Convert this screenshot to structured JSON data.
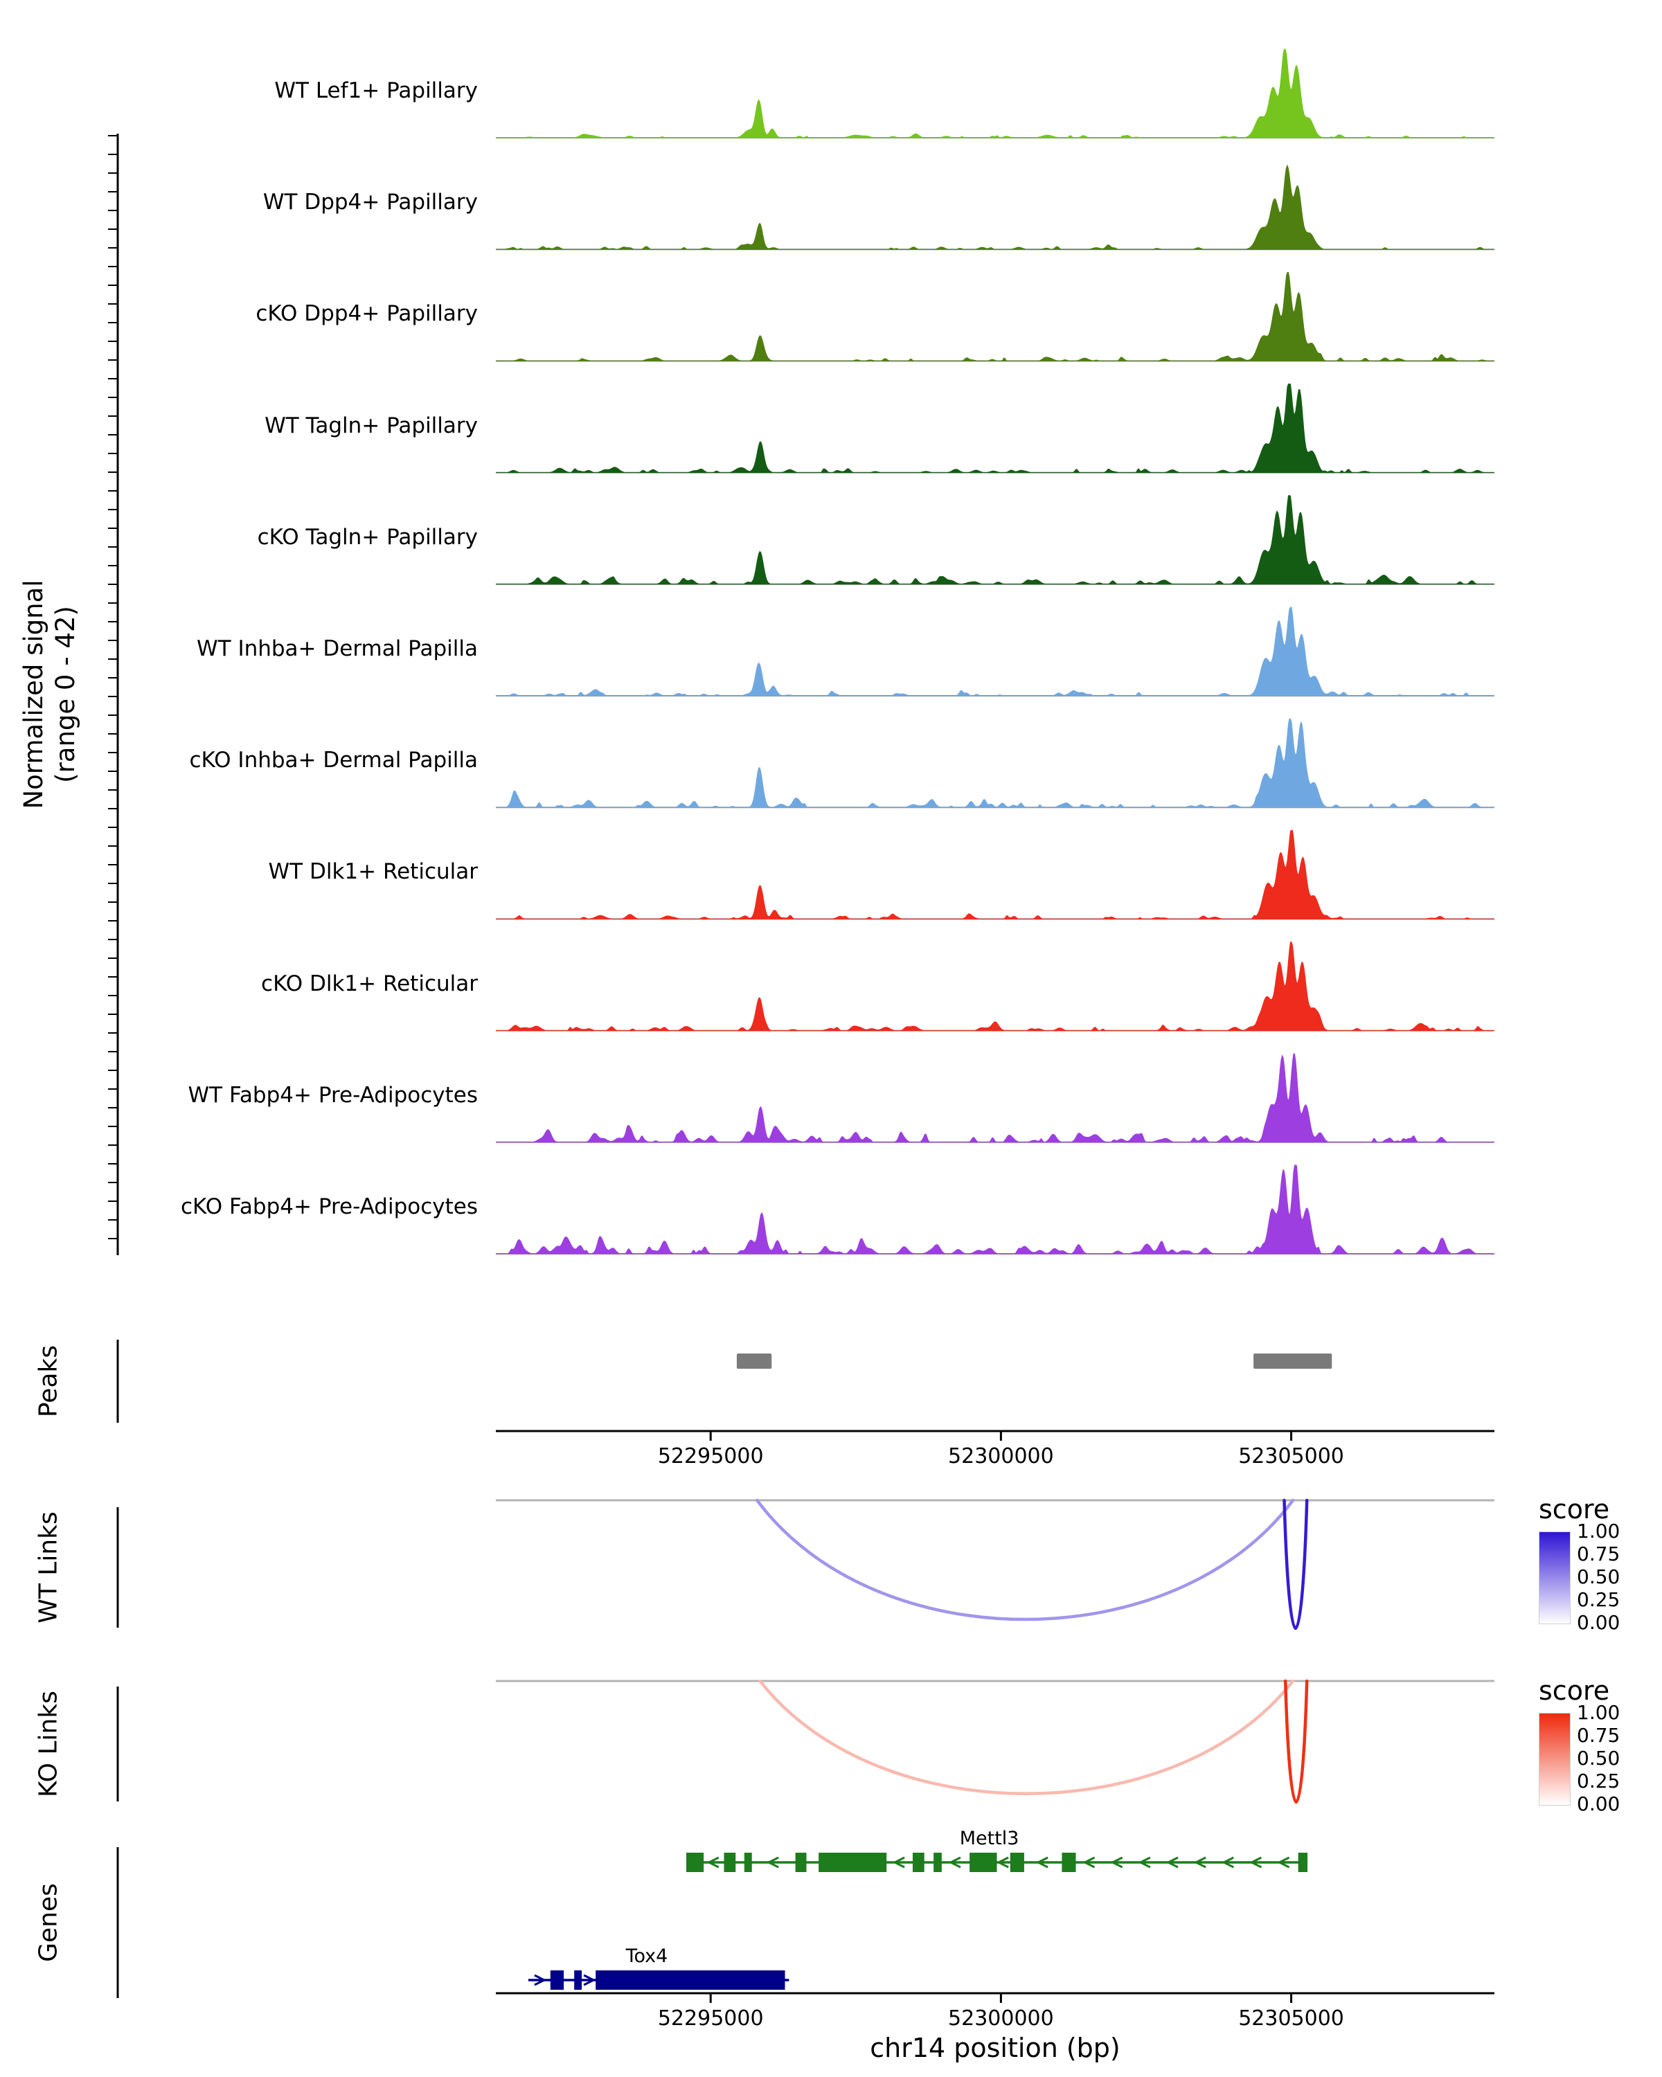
{
  "left_labels": {
    "signal_axis_line1": "Normalized signal",
    "signal_axis_line2": "(range 0 - 42)",
    "peaks": "Peaks",
    "wt_links": "WT Links",
    "ko_links": "KO Links",
    "genes": "Genes"
  },
  "x_axis": {
    "title": "chr14 position (bp)",
    "ticks": [
      52295000,
      52300000,
      52305000
    ],
    "tick_labels": [
      "52295000",
      "52300000",
      "52305000"
    ],
    "range_start": 52291300,
    "range_end": 52308500
  },
  "legend": {
    "title": "score",
    "ticks": [
      "1.00",
      "0.75",
      "0.50",
      "0.25",
      "0.00"
    ]
  },
  "chart_data": {
    "type": "area",
    "description": "Genome browser coverage tracks with peaks, co-accessibility links and gene models",
    "signal_range": [
      0,
      42
    ],
    "tracks": [
      {
        "label": "WT Lef1+ Papillary",
        "color": "#76c51e",
        "peaks": [
          [
            52292900,
            0.03,
            120
          ],
          [
            52295650,
            0.08,
            80
          ],
          [
            52295830,
            0.42,
            55
          ],
          [
            52296060,
            0.1,
            50
          ],
          [
            52297500,
            0.03,
            100
          ],
          [
            52300800,
            0.03,
            90
          ],
          [
            52304470,
            0.22,
            95
          ],
          [
            52304690,
            0.55,
            75
          ],
          [
            52304890,
            1.0,
            62
          ],
          [
            52305090,
            0.8,
            68
          ],
          [
            52305300,
            0.22,
            85
          ]
        ],
        "noise": {
          "seed": 11,
          "bumps": 30,
          "amp": 0.028
        }
      },
      {
        "label": "WT Dpp4+ Papillary",
        "color": "#4f7f10",
        "peaks": [
          [
            52295640,
            0.06,
            70
          ],
          [
            52295840,
            0.27,
            55
          ],
          [
            52304500,
            0.24,
            95
          ],
          [
            52304720,
            0.52,
            75
          ],
          [
            52304930,
            0.92,
            62
          ],
          [
            52305110,
            0.7,
            66
          ],
          [
            52305320,
            0.18,
            80
          ]
        ],
        "noise": {
          "seed": 22,
          "bumps": 40,
          "amp": 0.035
        }
      },
      {
        "label": "cKO Dpp4+ Papillary",
        "color": "#4f7f10",
        "peaks": [
          [
            52295850,
            0.28,
            58
          ],
          [
            52304520,
            0.28,
            95
          ],
          [
            52304740,
            0.58,
            72
          ],
          [
            52304940,
            1.0,
            60
          ],
          [
            52305130,
            0.76,
            66
          ],
          [
            52305350,
            0.2,
            82
          ]
        ],
        "noise": {
          "seed": 33,
          "bumps": 45,
          "amp": 0.04
        }
      },
      {
        "label": "WT Tagln+ Papillary",
        "color": "#145c14",
        "peaks": [
          [
            52292400,
            0.05,
            70
          ],
          [
            52293350,
            0.06,
            70
          ],
          [
            52295860,
            0.34,
            55
          ],
          [
            52304560,
            0.32,
            90
          ],
          [
            52304770,
            0.72,
            68
          ],
          [
            52304960,
            1.0,
            58
          ],
          [
            52305140,
            0.93,
            62
          ],
          [
            52305350,
            0.24,
            78
          ]
        ],
        "noise": {
          "seed": 44,
          "bumps": 50,
          "amp": 0.045
        }
      },
      {
        "label": "cKO Tagln+ Papillary",
        "color": "#145c14",
        "peaks": [
          [
            52292300,
            0.08,
            70
          ],
          [
            52293300,
            0.06,
            65
          ],
          [
            52295850,
            0.37,
            58
          ],
          [
            52299000,
            0.04,
            80
          ],
          [
            52304540,
            0.38,
            92
          ],
          [
            52304760,
            0.8,
            68
          ],
          [
            52304970,
            1.0,
            60
          ],
          [
            52305160,
            0.8,
            64
          ],
          [
            52305390,
            0.26,
            85
          ],
          [
            52306600,
            0.1,
            75
          ],
          [
            52307050,
            0.07,
            70
          ]
        ],
        "noise": {
          "seed": 55,
          "bumps": 60,
          "amp": 0.05
        }
      },
      {
        "label": "WT Inhba+ Dermal Papilla",
        "color": "#6fa8e0",
        "peaks": [
          [
            52293000,
            0.05,
            80
          ],
          [
            52295830,
            0.37,
            60
          ],
          [
            52296080,
            0.1,
            55
          ],
          [
            52304560,
            0.42,
            95
          ],
          [
            52304790,
            0.82,
            70
          ],
          [
            52304990,
            1.0,
            62
          ],
          [
            52305180,
            0.68,
            66
          ],
          [
            52305400,
            0.22,
            82
          ]
        ],
        "noise": {
          "seed": 66,
          "bumps": 45,
          "amp": 0.04
        }
      },
      {
        "label": "cKO Inhba+ Dermal Papilla",
        "color": "#6fa8e0",
        "peaks": [
          [
            52291650,
            0.13,
            60
          ],
          [
            52292900,
            0.08,
            60
          ],
          [
            52293900,
            0.07,
            60
          ],
          [
            52295840,
            0.42,
            58
          ],
          [
            52296500,
            0.08,
            60
          ],
          [
            52298800,
            0.07,
            65
          ],
          [
            52304560,
            0.38,
            92
          ],
          [
            52304790,
            0.68,
            68
          ],
          [
            52304980,
            1.0,
            58
          ],
          [
            52305170,
            0.88,
            62
          ],
          [
            52305390,
            0.28,
            80
          ],
          [
            52307300,
            0.09,
            70
          ]
        ],
        "noise": {
          "seed": 77,
          "bumps": 60,
          "amp": 0.05
        }
      },
      {
        "label": "WT Dlk1+ Reticular",
        "color": "#ee2b1c",
        "peaks": [
          [
            52293100,
            0.04,
            80
          ],
          [
            52295850,
            0.38,
            58
          ],
          [
            52296100,
            0.1,
            50
          ],
          [
            52304600,
            0.38,
            90
          ],
          [
            52304820,
            0.72,
            68
          ],
          [
            52305010,
            1.0,
            60
          ],
          [
            52305200,
            0.68,
            64
          ],
          [
            52305410,
            0.2,
            80
          ]
        ],
        "noise": {
          "seed": 88,
          "bumps": 45,
          "amp": 0.04
        }
      },
      {
        "label": "cKO Dlk1+ Reticular",
        "color": "#ee2b1c",
        "peaks": [
          [
            52292000,
            0.05,
            70
          ],
          [
            52295840,
            0.33,
            58
          ],
          [
            52298500,
            0.05,
            70
          ],
          [
            52299900,
            0.06,
            65
          ],
          [
            52304580,
            0.38,
            92
          ],
          [
            52304800,
            0.75,
            68
          ],
          [
            52305000,
            1.0,
            60
          ],
          [
            52305190,
            0.76,
            64
          ],
          [
            52305400,
            0.24,
            80
          ],
          [
            52307200,
            0.06,
            70
          ]
        ],
        "noise": {
          "seed": 99,
          "bumps": 55,
          "amp": 0.045
        }
      },
      {
        "label": "WT Fabp4+ Pre-Adipocytes",
        "color": "#9d3fe0",
        "peaks": [
          [
            52292200,
            0.14,
            55
          ],
          [
            52293000,
            0.1,
            55
          ],
          [
            52293600,
            0.12,
            55
          ],
          [
            52294500,
            0.1,
            55
          ],
          [
            52295650,
            0.12,
            60
          ],
          [
            52295860,
            0.4,
            55
          ],
          [
            52296100,
            0.12,
            50
          ],
          [
            52297500,
            0.11,
            55
          ],
          [
            52298300,
            0.07,
            55
          ],
          [
            52300900,
            0.09,
            55
          ],
          [
            52302300,
            0.07,
            55
          ],
          [
            52304660,
            0.42,
            80
          ],
          [
            52304850,
            0.95,
            60
          ],
          [
            52305050,
            1.0,
            58
          ],
          [
            52305250,
            0.42,
            66
          ]
        ],
        "noise": {
          "seed": 110,
          "bumps": 70,
          "amp": 0.06
        }
      },
      {
        "label": "cKO Fabp4+ Pre-Adipocytes",
        "color": "#9d3fe0",
        "peaks": [
          [
            52291700,
            0.16,
            55
          ],
          [
            52292500,
            0.18,
            60
          ],
          [
            52293100,
            0.13,
            55
          ],
          [
            52294200,
            0.1,
            55
          ],
          [
            52295700,
            0.14,
            60
          ],
          [
            52295880,
            0.46,
            55
          ],
          [
            52296150,
            0.15,
            50
          ],
          [
            52297600,
            0.13,
            55
          ],
          [
            52298900,
            0.1,
            55
          ],
          [
            52300400,
            0.08,
            55
          ],
          [
            52302500,
            0.1,
            55
          ],
          [
            52304680,
            0.48,
            80
          ],
          [
            52304870,
            0.92,
            60
          ],
          [
            52305070,
            1.0,
            56
          ],
          [
            52305270,
            0.5,
            66
          ],
          [
            52307600,
            0.14,
            58
          ]
        ],
        "noise": {
          "seed": 121,
          "bumps": 80,
          "amp": 0.065
        }
      }
    ],
    "peaks_color": "#7a7a7a",
    "peak_regions": [
      {
        "start": 52295450,
        "end": 52296050
      },
      {
        "start": 52304350,
        "end": 52305700
      }
    ],
    "wt_links": {
      "max_color": "#2f14d4",
      "links": [
        {
          "start": 52295800,
          "end": 52305030,
          "score": 0.45,
          "depth": 0.93
        },
        {
          "start": 52304880,
          "end": 52305270,
          "score": 0.97,
          "depth": 1.0
        }
      ]
    },
    "ko_links": {
      "max_color": "#ee2a0d",
      "links": [
        {
          "start": 52295850,
          "end": 52305030,
          "score": 0.33,
          "depth": 0.93
        },
        {
          "start": 52304900,
          "end": 52305270,
          "score": 0.97,
          "depth": 1.0
        }
      ]
    },
    "genes": [
      {
        "name": "Mettl3",
        "color": "#1d7d1d",
        "strand": "-",
        "row": 0,
        "start": 52294580,
        "end": 52305280,
        "label_pos": 52299800,
        "exons": [
          [
            52294580,
            52294880
          ],
          [
            52295230,
            52295430
          ],
          [
            52295580,
            52295710
          ],
          [
            52296460,
            52296650
          ],
          [
            52296860,
            52298030
          ],
          [
            52298480,
            52298680
          ],
          [
            52298840,
            52298980
          ],
          [
            52299460,
            52299930
          ],
          [
            52300160,
            52300400
          ],
          [
            52301050,
            52301290
          ],
          [
            52305120,
            52305280
          ]
        ]
      },
      {
        "name": "Tox4",
        "color": "#00008b",
        "strand": "+",
        "row": 1,
        "start": 52291860,
        "end": 52296350,
        "label_pos": 52293900,
        "exons": [
          [
            52292240,
            52292470
          ],
          [
            52292650,
            52292780
          ],
          [
            52293020,
            52296280
          ]
        ]
      }
    ]
  }
}
